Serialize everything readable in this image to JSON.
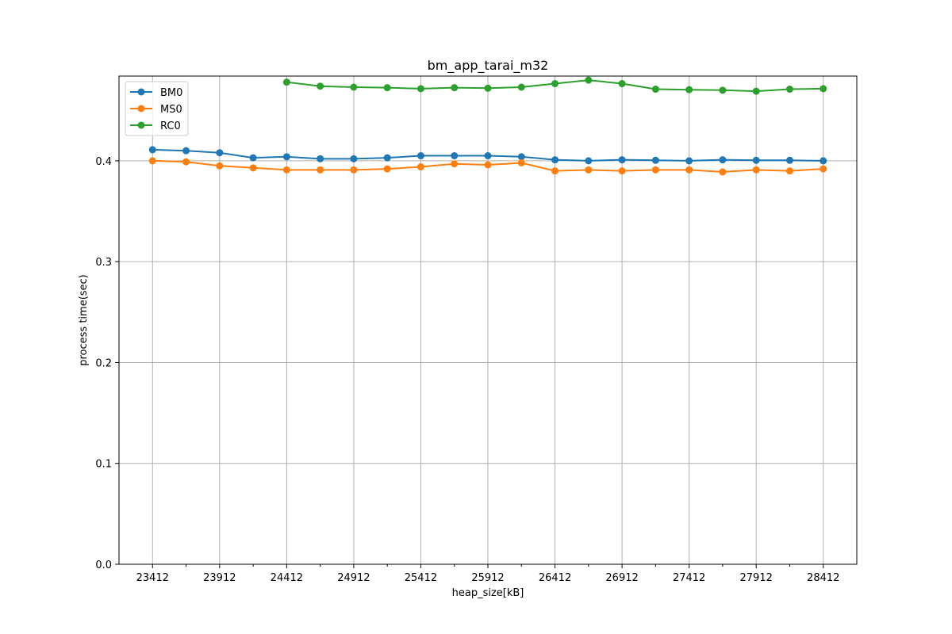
{
  "chart_data": {
    "type": "line",
    "title": "bm_app_tarai_m32",
    "xlabel": "heap_size[kB]",
    "ylabel": "process time(sec)",
    "x": [
      23412,
      23662,
      23912,
      24162,
      24412,
      24662,
      24912,
      25162,
      25412,
      25662,
      25912,
      26162,
      26412,
      26662,
      26912,
      27162,
      27412,
      27662,
      27912,
      28162,
      28412
    ],
    "x_ticks": [
      23412,
      23912,
      24412,
      24912,
      25412,
      25912,
      26412,
      26912,
      27412,
      27912,
      28412
    ],
    "x_minor_ticks": [
      23662,
      24162,
      24662,
      25162,
      25662,
      26162,
      26662,
      27162,
      27662,
      28162
    ],
    "xlim": [
      23162,
      28662
    ],
    "y_ticks": [
      0.0,
      0.1,
      0.2,
      0.3,
      0.4
    ],
    "y_tick_labels": [
      "0.0",
      "0.1",
      "0.2",
      "0.3",
      "0.4"
    ],
    "ylim": [
      0.0,
      0.484
    ],
    "grid": true,
    "legend": "top-left",
    "series": [
      {
        "name": "BM0",
        "color": "#1f77b4",
        "values": [
          0.411,
          0.41,
          0.408,
          0.403,
          0.404,
          0.402,
          0.402,
          0.403,
          0.405,
          0.405,
          0.405,
          0.404,
          0.401,
          0.4,
          0.401,
          0.4005,
          0.4,
          0.401,
          0.4005,
          0.4005,
          0.4
        ]
      },
      {
        "name": "MS0",
        "color": "#ff7f0e",
        "values": [
          0.4,
          0.399,
          0.395,
          0.393,
          0.391,
          0.391,
          0.391,
          0.392,
          0.394,
          0.397,
          0.396,
          0.398,
          0.39,
          0.391,
          0.39,
          0.391,
          0.391,
          0.389,
          0.391,
          0.39,
          0.392
        ]
      },
      {
        "name": "RC0",
        "color": "#2ca02c",
        "values": [
          null,
          null,
          null,
          null,
          0.478,
          0.474,
          0.473,
          0.4725,
          0.4715,
          0.4725,
          0.472,
          0.473,
          0.4765,
          0.48,
          0.4765,
          0.471,
          0.4705,
          0.47,
          0.469,
          0.471,
          0.4715
        ]
      }
    ]
  }
}
